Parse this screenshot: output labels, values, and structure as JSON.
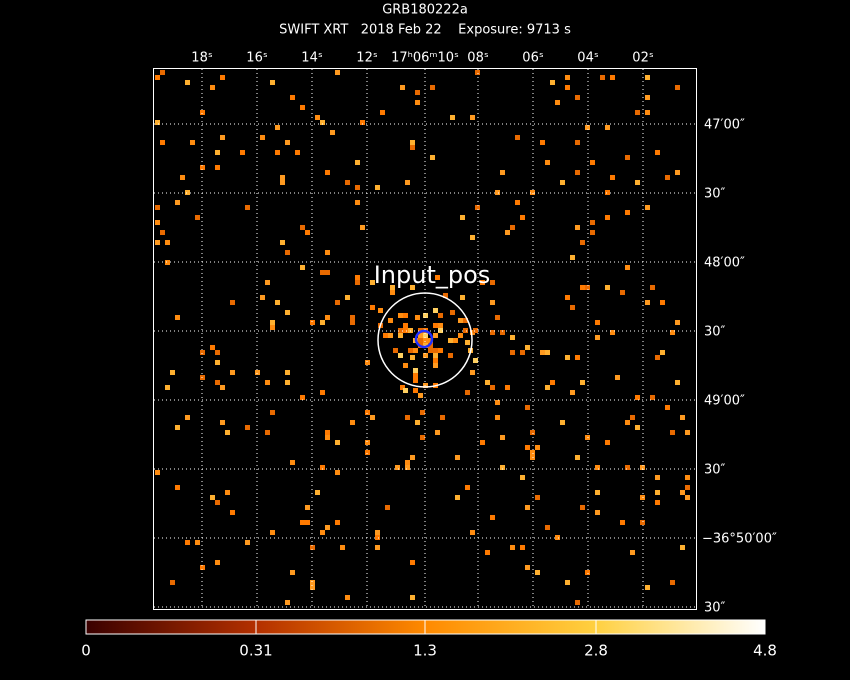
{
  "header": {
    "title": "GRB180222a",
    "subtitle": "SWIFT XRT   2018 Feb 22    Exposure: 9713 s"
  },
  "image": {
    "ra_labels": [
      "18ˢ",
      "16ˢ",
      "14ˢ",
      "12ˢ",
      "17ʰ06ᵐ10ˢ",
      "08ˢ",
      "06ˢ",
      "04ˢ",
      "02ˢ"
    ],
    "dec_labels": [
      "47′00″",
      "30″",
      "48′00″",
      "30″",
      "49′00″",
      "30″",
      "−36°50′00″",
      "30″"
    ],
    "annotation": "Input_pos"
  },
  "colorbar": {
    "labels": [
      "0",
      "0.31",
      "1.3",
      "2.8",
      "4.8"
    ]
  }
}
